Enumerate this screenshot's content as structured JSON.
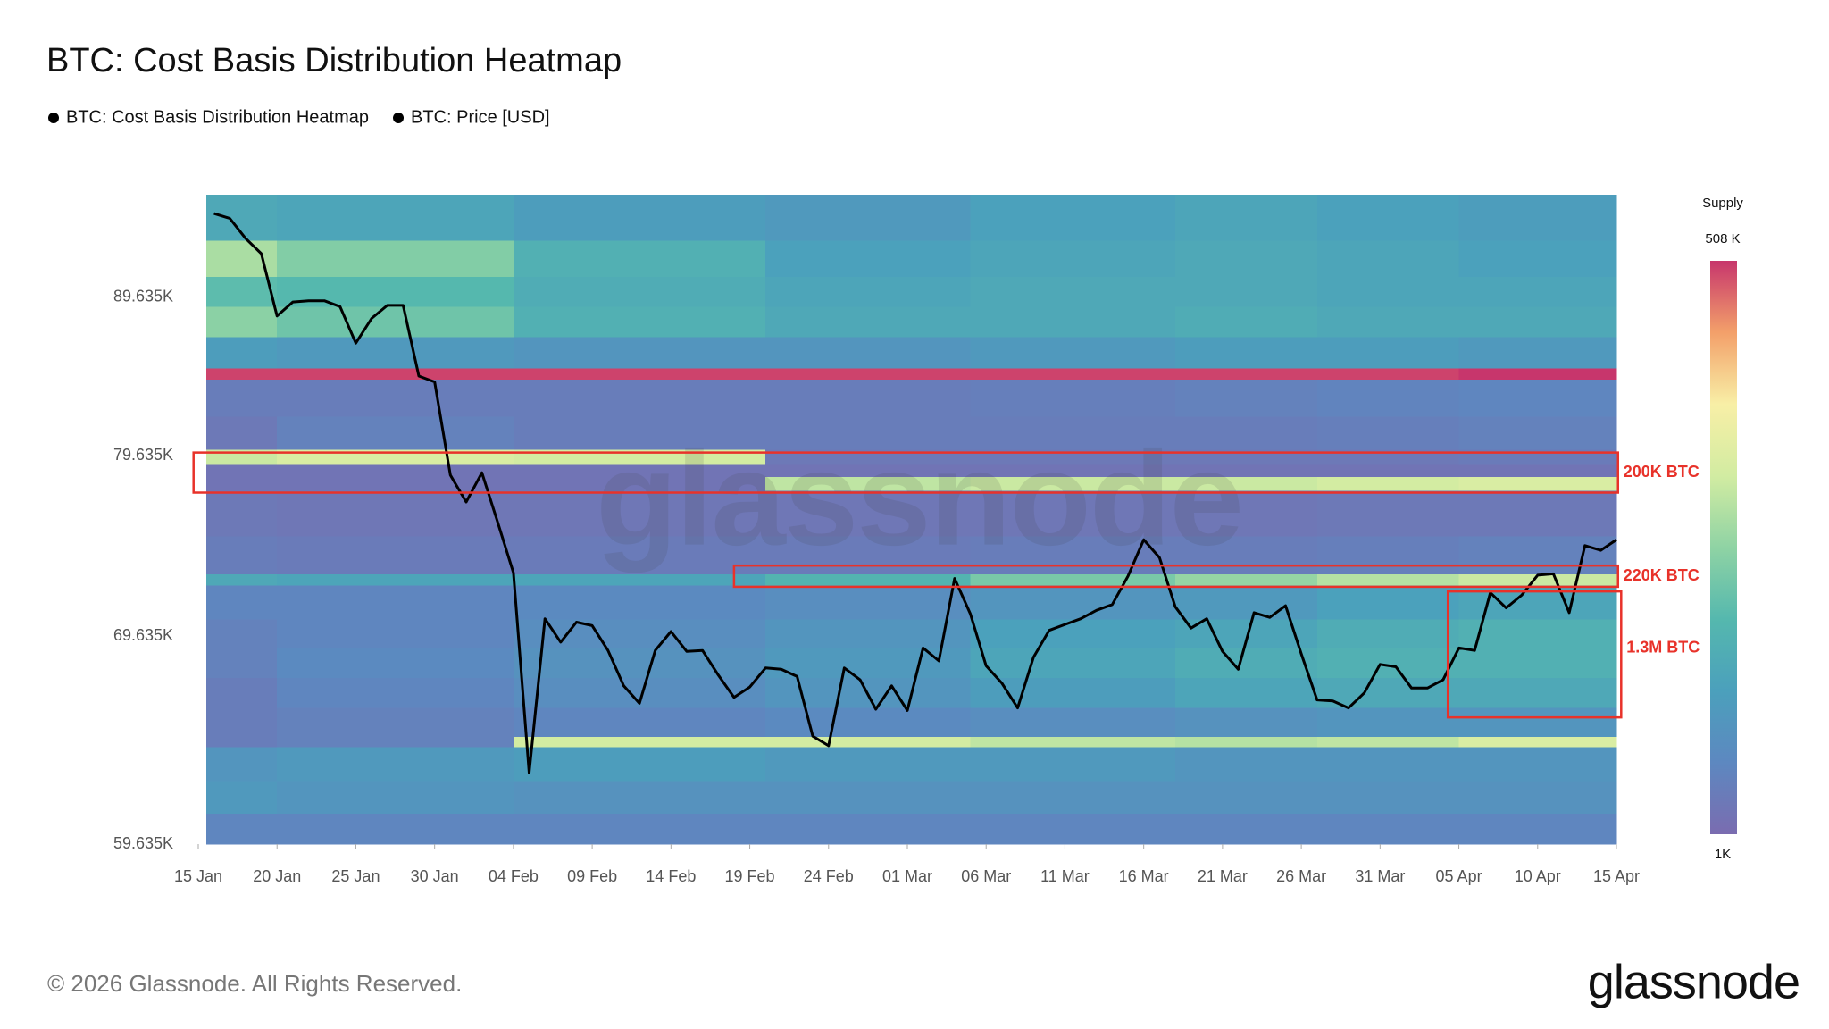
{
  "chart_data": {
    "type": "heatmap",
    "title": "BTC: Cost Basis Distribution Heatmap",
    "x": [
      1,
      2,
      3,
      4,
      5,
      6,
      7,
      8,
      9,
      10,
      11,
      12,
      13,
      14,
      15,
      16,
      17,
      18,
      19,
      20,
      21,
      22,
      23,
      24,
      25,
      26,
      27,
      28,
      29,
      30,
      31,
      32,
      33,
      34,
      35,
      36,
      37,
      38,
      39,
      40,
      41,
      42,
      43,
      44,
      45,
      46,
      47,
      48,
      49,
      50,
      51,
      52,
      53,
      54,
      55,
      56,
      57,
      58,
      59,
      60,
      61,
      62,
      63,
      64,
      65,
      66,
      67,
      68,
      69,
      70,
      71,
      72,
      73,
      74,
      75,
      76,
      77,
      78,
      79,
      80,
      81,
      82,
      83,
      84,
      85,
      86,
      87,
      88,
      89,
      90
    ],
    "xlim": [
      0,
      90
    ],
    "xticks": [
      {
        "value": 0,
        "label": "15 Jan"
      },
      {
        "value": 5,
        "label": "20 Jan"
      },
      {
        "value": 10,
        "label": "25 Jan"
      },
      {
        "value": 15,
        "label": "30 Jan"
      },
      {
        "value": 20,
        "label": "04 Feb"
      },
      {
        "value": 25,
        "label": "09 Feb"
      },
      {
        "value": 30,
        "label": "14 Feb"
      },
      {
        "value": 35,
        "label": "19 Feb"
      },
      {
        "value": 40,
        "label": "24 Feb"
      },
      {
        "value": 45,
        "label": "01 Mar"
      },
      {
        "value": 50,
        "label": "06 Mar"
      },
      {
        "value": 55,
        "label": "11 Mar"
      },
      {
        "value": 60,
        "label": "16 Mar"
      },
      {
        "value": 65,
        "label": "21 Mar"
      },
      {
        "value": 70,
        "label": "26 Mar"
      },
      {
        "value": 75,
        "label": "31 Mar"
      },
      {
        "value": 80,
        "label": "05 Apr"
      },
      {
        "value": 85,
        "label": "10 Apr"
      },
      {
        "value": 90,
        "label": "15 Apr"
      }
    ],
    "ylim": [
      59635,
      96750
    ],
    "log_y": true,
    "yticks": [
      {
        "value": 89635,
        "label": "89.635K"
      },
      {
        "value": 79635,
        "label": "79.635K"
      },
      {
        "value": 69635,
        "label": "69.635K"
      },
      {
        "value": 59635,
        "label": "59.635K"
      }
    ],
    "heatmap": {
      "name": "BTC: Cost Basis Distribution Heatmap",
      "color": "#000000",
      "day_edges": [
        0.5,
        5,
        20,
        36,
        49,
        62,
        71,
        80,
        90
      ],
      "price_edges": [
        96750,
        93500,
        91000,
        89000,
        87000,
        85000,
        84300,
        82000,
        80000,
        79100,
        78400,
        77600,
        75000,
        72900,
        72300,
        70500,
        69000,
        67500,
        66000,
        64600,
        64100,
        62500,
        61000,
        59635
      ],
      "supply": [
        [
          150000,
          140000,
          120000,
          110000,
          130000,
          140000,
          130000,
          120000
        ],
        [
          280000,
          240000,
          170000,
          130000,
          140000,
          150000,
          140000,
          130000
        ],
        [
          200000,
          190000,
          160000,
          140000,
          150000,
          150000,
          140000,
          140000
        ],
        [
          250000,
          220000,
          170000,
          150000,
          150000,
          160000,
          150000,
          150000
        ],
        [
          120000,
          110000,
          100000,
          100000,
          110000,
          120000,
          120000,
          110000
        ],
        [
          500000,
          500000,
          500000,
          500000,
          500000,
          500000,
          500000,
          508000
        ],
        [
          40000,
          40000,
          40000,
          40000,
          45000,
          50000,
          55000,
          60000
        ],
        [
          30000,
          50000,
          40000,
          40000,
          40000,
          40000,
          45000,
          50000
        ],
        [
          310000,
          330000,
          320000,
          30000,
          30000,
          30000,
          30000,
          35000
        ],
        [
          20000,
          20000,
          20000,
          20000,
          20000,
          20000,
          20000,
          20000
        ],
        [
          20000,
          20000,
          20000,
          300000,
          310000,
          310000,
          320000,
          330000
        ],
        [
          30000,
          25000,
          25000,
          25000,
          25000,
          25000,
          30000,
          30000
        ],
        [
          40000,
          35000,
          35000,
          35000,
          40000,
          40000,
          45000,
          50000
        ],
        [
          150000,
          140000,
          140000,
          180000,
          230000,
          260000,
          290000,
          310000
        ],
        [
          60000,
          60000,
          70000,
          80000,
          100000,
          110000,
          130000,
          140000
        ],
        [
          50000,
          60000,
          80000,
          100000,
          130000,
          140000,
          160000,
          170000
        ],
        [
          50000,
          70000,
          90000,
          110000,
          140000,
          160000,
          170000,
          170000
        ],
        [
          40000,
          60000,
          80000,
          100000,
          120000,
          140000,
          150000,
          150000
        ],
        [
          40000,
          50000,
          60000,
          70000,
          80000,
          90000,
          100000,
          100000
        ],
        [
          40000,
          50000,
          320000,
          320000,
          300000,
          290000,
          300000,
          330000
        ],
        [
          100000,
          110000,
          120000,
          110000,
          110000,
          100000,
          100000,
          100000
        ],
        [
          110000,
          100000,
          90000,
          90000,
          90000,
          90000,
          90000,
          90000
        ],
        [
          60000,
          60000,
          60000,
          60000,
          60000,
          60000,
          60000,
          60000
        ]
      ],
      "colorbar": {
        "title": "Supply",
        "lim": [
          1000,
          508000
        ],
        "ticks": [
          {
            "value": 508000,
            "label": "508 K"
          },
          {
            "value": 1000,
            "label": "1K"
          }
        ],
        "colors": [
          "#7a6cb0",
          "#5d88c0",
          "#4ba0bc",
          "#55b8ae",
          "#8fd3a4",
          "#d2eca2",
          "#f8efa6",
          "#f3a06a",
          "#c7366c"
        ]
      }
    },
    "series": [
      {
        "name": "BTC: Price [USD]",
        "color": "#000000",
        "values": [
          95400,
          95060,
          93660,
          92590,
          88390,
          89320,
          89400,
          89400,
          89010,
          86620,
          88230,
          89090,
          89090,
          84520,
          84150,
          78510,
          76950,
          78650,
          75810,
          73000,
          62890,
          70540,
          69320,
          70360,
          70180,
          68890,
          67100,
          66230,
          68890,
          69870,
          68840,
          68890,
          67640,
          66520,
          67040,
          68000,
          67930,
          67570,
          64630,
          64170,
          68000,
          67400,
          65940,
          67100,
          65880,
          69020,
          68360,
          72690,
          70790,
          68110,
          67230,
          66000,
          68540,
          69930,
          70240,
          70540,
          70980,
          71290,
          72810,
          74820,
          73830,
          71170,
          70050,
          70540,
          68840,
          67930,
          70860,
          70610,
          71230,
          68720,
          66400,
          66350,
          66000,
          66750,
          68180,
          68060,
          66990,
          66990,
          67400,
          69020,
          68890,
          71920,
          71110,
          71800,
          72870,
          72940,
          70860,
          74490,
          74230,
          74820
        ]
      }
    ],
    "annotations": [
      {
        "text": "200K BTC",
        "x": [
          -0.3,
          90.1
        ],
        "y": [
          77490,
          79840
        ]
      },
      {
        "text": "220K BTC",
        "x": [
          34.0,
          90.1
        ],
        "y": [
          72240,
          73390
        ]
      },
      {
        "text": "1.3M BTC",
        "x": [
          79.3,
          90.3
        ],
        "y": [
          65540,
          71990
        ]
      }
    ],
    "watermark": "glassnode"
  },
  "footer": {
    "copyright": "© 2026 Glassnode. All Rights Reserved.",
    "logo": "glassnode"
  }
}
